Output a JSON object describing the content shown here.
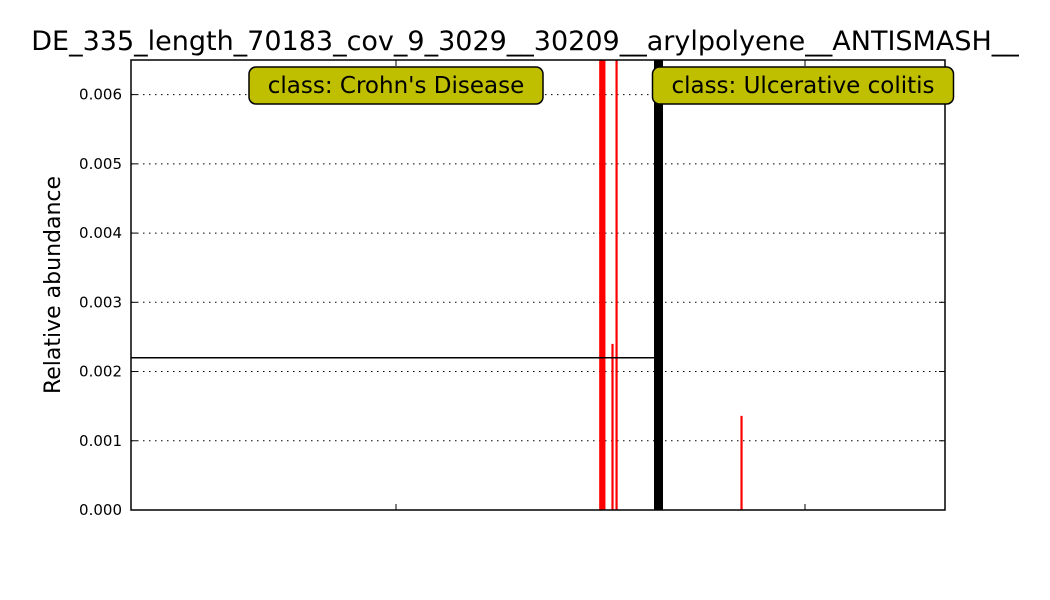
{
  "chart_data": {
    "type": "bar",
    "title": "DE_335_length_70183_cov_9_3029__30209__arylpolyene__ANTISMASH__",
    "xlabel": "",
    "ylabel": "Relative abundance",
    "ylim": [
      0,
      0.0065
    ],
    "yticks": [
      "0.000",
      "0.001",
      "0.002",
      "0.003",
      "0.004",
      "0.005",
      "0.006"
    ],
    "grid": true,
    "class_labels": [
      "class: Crohn's Disease",
      "class: Ulcerative colitis"
    ],
    "label_box_color": "#bfbf00",
    "bar_color": "#ff0000",
    "divider_color": "#000000",
    "mean_line": {
      "class": "class: Crohn's Disease",
      "value": 0.0022
    },
    "crohns_samples": 388,
    "values": [
      {
        "index": 345,
        "value": 0.0065
      },
      {
        "index": 346,
        "value": 0.0065
      },
      {
        "index": 347,
        "value": 0.0065
      },
      {
        "index": 348,
        "value": 0.0065
      },
      {
        "index": 354,
        "value": 0.0024
      },
      {
        "index": 357,
        "value": 0.0065
      },
      {
        "index": 449,
        "value": 0.00136
      }
    ]
  }
}
